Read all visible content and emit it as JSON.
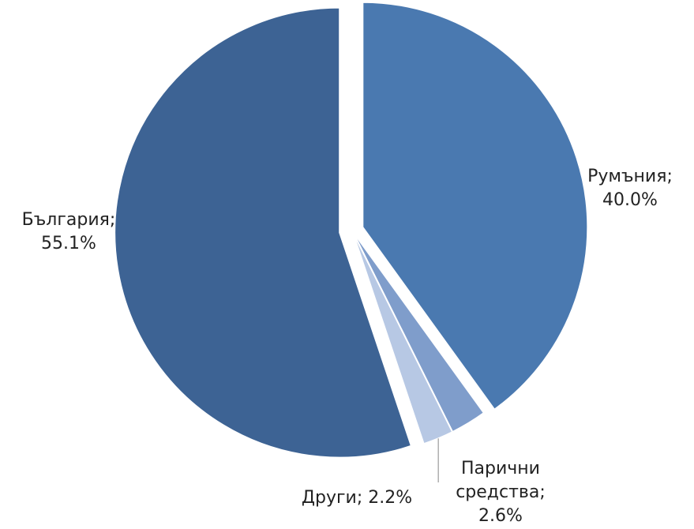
{
  "chart_data": {
    "type": "pie",
    "title": "",
    "series": [
      {
        "values": [
          {
            "label": "България",
            "value": 55.1,
            "display": "България;\n55.1%",
            "color": "#3d6394"
          },
          {
            "label": "Румъния",
            "value": 40.0,
            "display": "Румъния;\n40.0%",
            "color": "#4a79b0"
          },
          {
            "label": "Парични средства",
            "value": 2.6,
            "display": "Парични\nсредства;\n2.6%",
            "color": "#7f9dcb"
          },
          {
            "label": "Други",
            "value": 2.2,
            "display": "Други; 2.2%",
            "color": "#b7c8e4"
          }
        ]
      }
    ],
    "legend": "none",
    "data_labels": "outside"
  }
}
